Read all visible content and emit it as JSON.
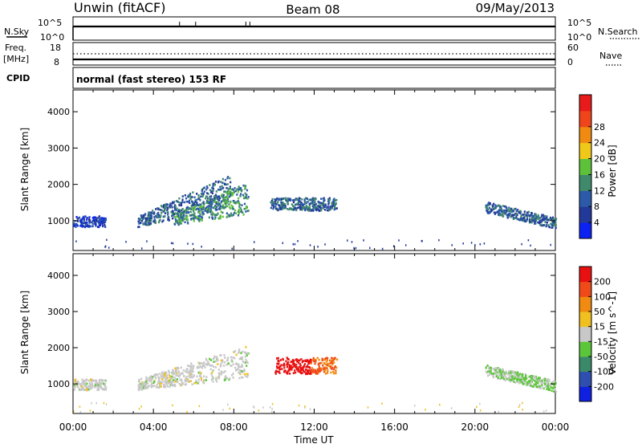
{
  "header": {
    "station": "Unwin (fitACF)",
    "beam": "Beam 08",
    "date": "09/May/2013"
  },
  "info_panels": {
    "nsky_label": "N.Sky",
    "nsky_ticks": [
      "10^5",
      "10^0"
    ],
    "nsearch_label": "N.Search",
    "nsearch_ticks": [
      "10^5",
      "10^0"
    ],
    "freq_label": "Freq.",
    "freq_unit": "[MHz]",
    "freq_ticks": [
      "18",
      "8"
    ],
    "nave_label": "Nave",
    "nave_ticks": [
      "60",
      "0"
    ],
    "cpid_label": "CPID",
    "cpid_text": "normal (fast stereo) 153 RF"
  },
  "chart_data": [
    {
      "type": "heatmap",
      "name": "power",
      "ylabel": "Slant Range [km]",
      "xlabel": "",
      "ylim": [
        180,
        4600
      ],
      "xlim": [
        0,
        24
      ],
      "yticks": [
        1000,
        2000,
        3000,
        4000
      ],
      "ytick_labels": [
        "1000",
        "2000",
        "3000",
        "4000"
      ],
      "colorbar": {
        "label": "Power [dB]",
        "range": [
          0,
          32
        ],
        "ticks": [
          "4",
          "8",
          "12",
          "16",
          "20",
          "24",
          "28"
        ],
        "colors": [
          "#0b22f2",
          "#23399a",
          "#2c5aa8",
          "#3f8a6a",
          "#5dc23a",
          "#f0c81a",
          "#f08a10",
          "#f0441a",
          "#e81a1a"
        ]
      },
      "regions": [
        {
          "t0": 0.0,
          "t1": 1.6,
          "r0": 850,
          "r1": 1150,
          "level": 1
        },
        {
          "t0": 3.2,
          "t1": 7.8,
          "r0": 850,
          "r1": 2400,
          "level": 2
        },
        {
          "t0": 5.0,
          "t1": 8.7,
          "r0": 900,
          "r1": 2000,
          "level": 3
        },
        {
          "t0": 9.8,
          "t1": 13.1,
          "r0": 1300,
          "r1": 1650,
          "level": 2
        },
        {
          "t0": 20.5,
          "t1": 24.0,
          "r0": 850,
          "r1": 1600,
          "level": 2
        }
      ]
    },
    {
      "type": "heatmap",
      "name": "velocity",
      "ylabel": "Slant Range [km]",
      "xlabel": "Time UT",
      "ylim": [
        180,
        4600
      ],
      "xlim": [
        0,
        24
      ],
      "yticks": [
        1000,
        2000,
        3000,
        4000
      ],
      "ytick_labels": [
        "1000",
        "2000",
        "3000",
        "4000"
      ],
      "xtick_labels": [
        "00:00",
        "04:00",
        "08:00",
        "12:00",
        "16:00",
        "20:00",
        "00:00"
      ],
      "colorbar": {
        "label": "Velocity [m s^-1]",
        "ticks": [
          "200",
          "100",
          "50",
          "15",
          "-15",
          "-50",
          "-100",
          "-200"
        ],
        "colors": [
          "#1020e0",
          "#2f4fb0",
          "#3a8a6a",
          "#5cc63a",
          "#c8c8c8",
          "#f0c020",
          "#f08a10",
          "#f04a18",
          "#e81010"
        ]
      },
      "regions": [
        {
          "t0": 0.0,
          "t1": 1.6,
          "r0": 850,
          "r1": 1150,
          "level": "gray"
        },
        {
          "t0": 3.2,
          "t1": 8.7,
          "r0": 850,
          "r1": 2000,
          "level": "gray"
        },
        {
          "t0": 10.0,
          "t1": 13.1,
          "r0": 1300,
          "r1": 1750,
          "level": "red-orange"
        },
        {
          "t0": 20.5,
          "t1": 24.0,
          "r0": 850,
          "r1": 1600,
          "level": "green-gray"
        }
      ]
    }
  ]
}
